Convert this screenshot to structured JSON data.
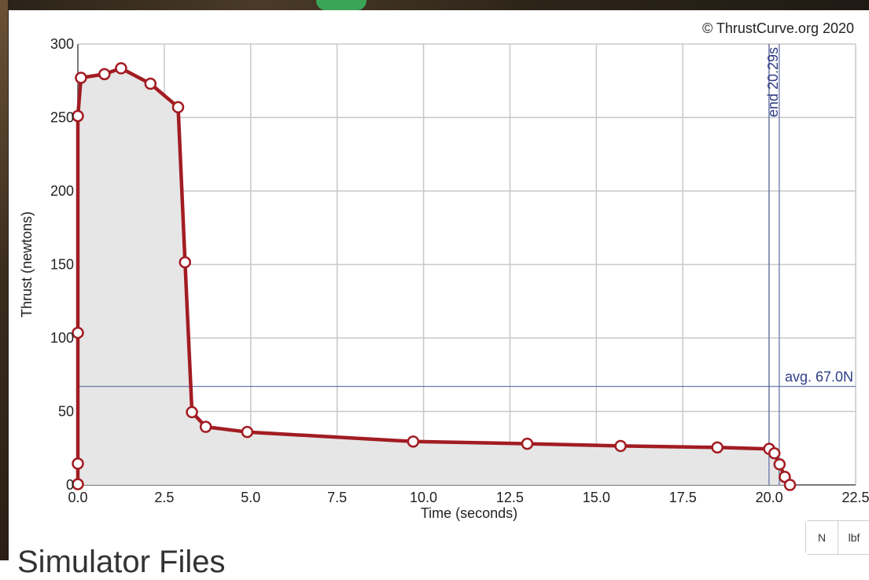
{
  "chart_data": {
    "type": "line",
    "copyright": "© ThrustCurve.org 2020",
    "xlabel": "Time (seconds)",
    "ylabel": "Thrust (newtons)",
    "xlim": [
      0,
      22.5
    ],
    "ylim": [
      0,
      300
    ],
    "x_ticks": [
      "0.0",
      "2.5",
      "5.0",
      "7.5",
      "10.0",
      "12.5",
      "15.0",
      "17.5",
      "20.0",
      "22.5"
    ],
    "y_ticks": [
      "0",
      "50",
      "100",
      "150",
      "200",
      "250",
      "300"
    ],
    "grid": true,
    "series": [
      {
        "x": [
          0.0,
          0.0,
          0.0,
          0.0,
          0.09,
          0.77,
          1.25,
          2.1,
          2.9,
          3.1,
          3.3,
          3.7,
          4.9,
          9.7,
          13.0,
          15.7,
          18.5,
          20.0,
          20.15,
          20.3,
          20.45,
          20.6
        ],
        "y": [
          0.5,
          14.5,
          103.5,
          251,
          277,
          279.5,
          283.5,
          273,
          257,
          151.5,
          49.5,
          39.5,
          36,
          29.5,
          28,
          26.5,
          25.5,
          24.5,
          21.5,
          14,
          5.5,
          0
        ],
        "color": "#a21c22"
      }
    ],
    "avg_line": {
      "value": 67.0,
      "label": "avg. 67.0N"
    },
    "end_line": {
      "value": 20.29,
      "label": "end 20.29s"
    },
    "fill_color": "#e6e6e6",
    "reference_line_color": "#5b6aa0"
  },
  "units": {
    "buttons": [
      "N",
      "lbf"
    ]
  },
  "section": {
    "heading": "Simulator Files"
  }
}
